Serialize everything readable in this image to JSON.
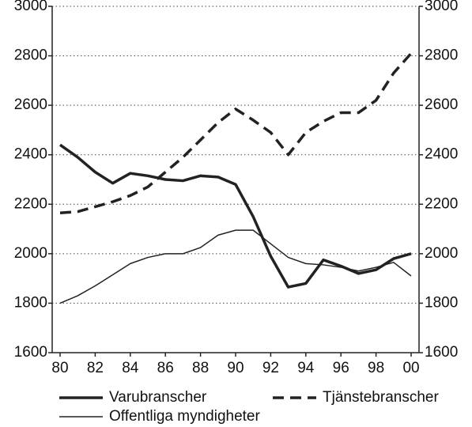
{
  "chart_data": {
    "type": "line",
    "x": [
      80,
      81,
      82,
      83,
      84,
      85,
      86,
      87,
      88,
      89,
      90,
      91,
      92,
      93,
      94,
      95,
      96,
      97,
      98,
      99,
      100
    ],
    "series": [
      {
        "name": "Varubranscher",
        "color": "#222222",
        "values": [
          2440,
          2390,
          2330,
          2285,
          2325,
          2315,
          2300,
          2295,
          2315,
          2310,
          2280,
          2150,
          1990,
          1865,
          1880,
          1975,
          1950,
          1920,
          1935,
          1980,
          2000
        ]
      },
      {
        "name": "Tjänstebranscher",
        "color": "#222222",
        "values": [
          2165,
          2170,
          2190,
          2210,
          2235,
          2270,
          2330,
          2390,
          2460,
          2530,
          2585,
          2540,
          2490,
          2400,
          2490,
          2535,
          2570,
          2570,
          2620,
          2730,
          2810
        ]
      },
      {
        "name": "Offentliga myndigheter",
        "color": "#222222",
        "values": [
          1800,
          1830,
          1870,
          1915,
          1960,
          1985,
          2000,
          2000,
          2025,
          2075,
          2095,
          2095,
          2040,
          1985,
          1960,
          1955,
          1945,
          1930,
          1945,
          1965,
          1910
        ]
      }
    ],
    "xlim": [
      79.55,
      100.45
    ],
    "xticks": [
      80,
      82,
      84,
      86,
      88,
      90,
      92,
      94,
      96,
      98,
      {
        "value": 100,
        "label": "00"
      }
    ],
    "ylim": [
      1600,
      3000
    ],
    "yticks": [
      1600,
      1800,
      2000,
      2200,
      2400,
      2600,
      2800,
      3000
    ],
    "y2lim": [
      1600,
      3000
    ],
    "y2ticks": [
      1600,
      1800,
      2000,
      2200,
      2400,
      2600,
      2800,
      3000
    ],
    "grid": true,
    "legend": "bottom"
  }
}
